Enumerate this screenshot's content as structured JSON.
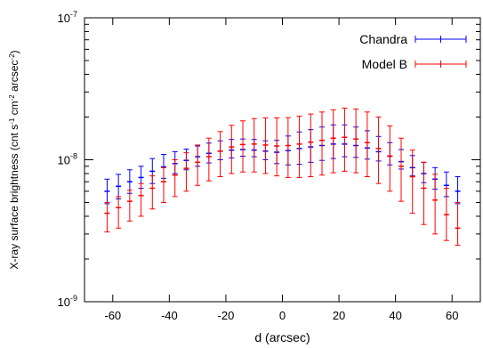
{
  "chart_data": {
    "type": "scatter",
    "xlabel": "d (arcsec)",
    "ylabel_main": "X-ray surface brightness (cnt s",
    "ylabel_parts": [
      {
        "text": "X-ray surface brightness (cnt s",
        "sup": false
      },
      {
        "text": "-1",
        "sup": true
      },
      {
        "text": " cm",
        "sup": false
      },
      {
        "text": "-2",
        "sup": true
      },
      {
        "text": " arcsec",
        "sup": false
      },
      {
        "text": "-2",
        "sup": true
      },
      {
        "text": ")",
        "sup": false
      }
    ],
    "xlim": [
      -70,
      70
    ],
    "ylim": [
      1e-09,
      1e-07
    ],
    "yscale": "log",
    "grid": false,
    "legend_position": "top-right",
    "x_ticks": [
      {
        "value": -60,
        "label": "-60"
      },
      {
        "value": -40,
        "label": "-40"
      },
      {
        "value": -20,
        "label": "-20"
      },
      {
        "value": 0,
        "label": "0"
      },
      {
        "value": 20,
        "label": "20"
      },
      {
        "value": 40,
        "label": "40"
      },
      {
        "value": 60,
        "label": "60"
      }
    ],
    "y_ticks": [
      {
        "value": 1e-09,
        "base": "10",
        "exp": "-9"
      },
      {
        "value": 1e-08,
        "base": "10",
        "exp": "-8"
      },
      {
        "value": 1e-07,
        "base": "10",
        "exp": "-7"
      }
    ],
    "series": [
      {
        "name": "Chandra",
        "color": "#0000ff",
        "x": [
          -62,
          -58,
          -54,
          -50,
          -46,
          -42,
          -38,
          -34,
          -30,
          -26,
          -22,
          -18,
          -14,
          -10,
          -6,
          -2,
          2,
          6,
          10,
          14,
          18,
          22,
          26,
          30,
          34,
          38,
          42,
          46,
          50,
          54,
          58,
          62
        ],
        "y": [
          6e-09,
          6.5e-09,
          7e-09,
          7.5e-09,
          8.3e-09,
          8.9e-09,
          9.4e-09,
          9.9e-09,
          1.05e-08,
          1.11e-08,
          1.15e-08,
          1.17e-08,
          1.18e-08,
          1.17e-08,
          1.15e-08,
          1.13e-08,
          1.16e-08,
          1.2e-08,
          1.23e-08,
          1.26e-08,
          1.29e-08,
          1.29e-08,
          1.26e-08,
          1.21e-08,
          1.14e-08,
          1.06e-08,
          9.7e-09,
          8.8e-09,
          8e-09,
          7.3e-09,
          6.6e-09,
          6e-09
        ],
        "y_low": [
          4.9e-09,
          5.3e-09,
          5.8e-09,
          6.3e-09,
          6.8e-09,
          7.4e-09,
          8e-09,
          8.5e-09,
          9e-09,
          9.5e-09,
          1e-08,
          1.03e-08,
          1.06e-08,
          1.05e-08,
          1e-08,
          9.4e-09,
          9.2e-09,
          9.3e-09,
          9.6e-09,
          9.9e-09,
          1.02e-08,
          1.05e-08,
          1.04e-08,
          1.01e-08,
          9.8e-09,
          9.2e-09,
          8.6e-09,
          7.7e-09,
          6.9e-09,
          6.2e-09,
          5.5e-09,
          4.9e-09
        ],
        "y_high": [
          7.3e-09,
          7.9e-09,
          8.5e-09,
          9e-09,
          1.02e-08,
          1.09e-08,
          1.14e-08,
          1.19e-08,
          1.25e-08,
          1.31e-08,
          1.36e-08,
          1.39e-08,
          1.4e-08,
          1.39e-08,
          1.36e-08,
          1.37e-08,
          1.47e-08,
          1.57e-08,
          1.63e-08,
          1.7e-08,
          1.76e-08,
          1.76e-08,
          1.7e-08,
          1.6e-08,
          1.46e-08,
          1.32e-08,
          1.18e-08,
          1.07e-08,
          9.6e-09,
          8.8e-09,
          8.2e-09,
          7.6e-09
        ]
      },
      {
        "name": "Model B",
        "color": "#ff0000",
        "x": [
          -62,
          -58,
          -54,
          -50,
          -46,
          -42,
          -38,
          -34,
          -30,
          -26,
          -22,
          -18,
          -14,
          -10,
          -6,
          -2,
          2,
          6,
          10,
          14,
          18,
          22,
          26,
          30,
          34,
          38,
          42,
          46,
          50,
          54,
          58,
          62
        ],
        "y": [
          4.2e-09,
          4.6e-09,
          5.1e-09,
          5.6e-09,
          6.3e-09,
          7e-09,
          7.8e-09,
          8.7e-09,
          9.6e-09,
          1.05e-08,
          1.15e-08,
          1.23e-08,
          1.28e-08,
          1.29e-08,
          1.27e-08,
          1.25e-08,
          1.26e-08,
          1.29e-08,
          1.33e-08,
          1.37e-08,
          1.42e-08,
          1.44e-08,
          1.4e-08,
          1.32e-08,
          1.2e-08,
          1.06e-08,
          9e-09,
          7.6e-09,
          6.3e-09,
          5.2e-09,
          4.1e-09,
          3.3e-09
        ],
        "y_low": [
          3.1e-09,
          3.3e-09,
          3.7e-09,
          4e-09,
          4.5e-09,
          5e-09,
          5.5e-09,
          6e-09,
          6.6e-09,
          7.1e-09,
          7.6e-09,
          8e-09,
          8.2e-09,
          8.2e-09,
          8e-09,
          7.7e-09,
          7.5e-09,
          7.5e-09,
          7.6e-09,
          7.8e-09,
          8.1e-09,
          8.3e-09,
          8.1e-09,
          7.6e-09,
          6.8e-09,
          6e-09,
          5.1e-09,
          4.2e-09,
          3.5e-09,
          3e-09,
          2.7e-09,
          2.5e-09
        ],
        "y_high": [
          5e-09,
          5.5e-09,
          6.1e-09,
          6.8e-09,
          7.7e-09,
          8.8e-09,
          1e-08,
          1.12e-08,
          1.27e-08,
          1.42e-08,
          1.58e-08,
          1.75e-08,
          1.88e-08,
          1.95e-08,
          1.97e-08,
          1.97e-08,
          1.98e-08,
          2.03e-08,
          2.1e-08,
          2.17e-08,
          2.25e-08,
          2.31e-08,
          2.28e-08,
          2.17e-08,
          2e-08,
          1.73e-08,
          1.42e-08,
          1.17e-08,
          9.6e-09,
          7.9e-09,
          6.3e-09,
          5e-09
        ]
      }
    ]
  }
}
